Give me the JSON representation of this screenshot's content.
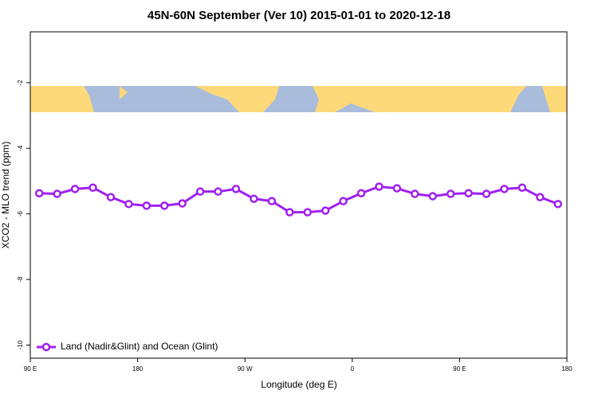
{
  "chart_data": {
    "type": "line",
    "title": "45N-60N September (Ver 10)   2015-01-01 to 2020-12-18",
    "x_label": "Longitude (deg E)",
    "y_label": "XCO2 - MLO trend (ppm)",
    "x": [
      97.5,
      112.5,
      127.5,
      142.5,
      157.5,
      172.5,
      187.5,
      202.5,
      217.5,
      232.5,
      247.5,
      262.5,
      277.5,
      292.5,
      307.5,
      322.5,
      337.5,
      352.5,
      367.5,
      382.5,
      397.5,
      412.5,
      427.5,
      442.5,
      457.5,
      472.5,
      487.5,
      502.5,
      517.5,
      532.5
    ],
    "series": [
      {
        "name": "Land (Nadir&Glint) and Ocean (Glint)",
        "color": "#a020f0",
        "values": [
          -5.37,
          -5.39,
          -5.24,
          -5.2,
          -5.49,
          -5.7,
          -5.75,
          -5.75,
          -5.68,
          -5.32,
          -5.32,
          -5.24,
          -5.54,
          -5.61,
          -5.95,
          -5.95,
          -5.9,
          -5.61,
          -5.37,
          -5.17,
          -5.22,
          -5.39,
          -5.46,
          -5.39,
          -5.37,
          -5.39,
          -5.24,
          -5.2,
          -5.49,
          -5.7
        ]
      }
    ],
    "xlim": [
      90,
      540
    ],
    "xticks": [
      {
        "value": 90,
        "label": "90 E"
      },
      {
        "value": 180,
        "label": "180"
      },
      {
        "value": 270,
        "label": "90 W"
      },
      {
        "value": 360,
        "label": "0"
      },
      {
        "value": 450,
        "label": "90 E"
      },
      {
        "value": 540,
        "label": "180"
      }
    ],
    "ylim": [
      -10.4,
      -0.45
    ],
    "yticks": [
      -2,
      -4,
      -6,
      -8,
      -10
    ],
    "legend": "bottom-left"
  }
}
